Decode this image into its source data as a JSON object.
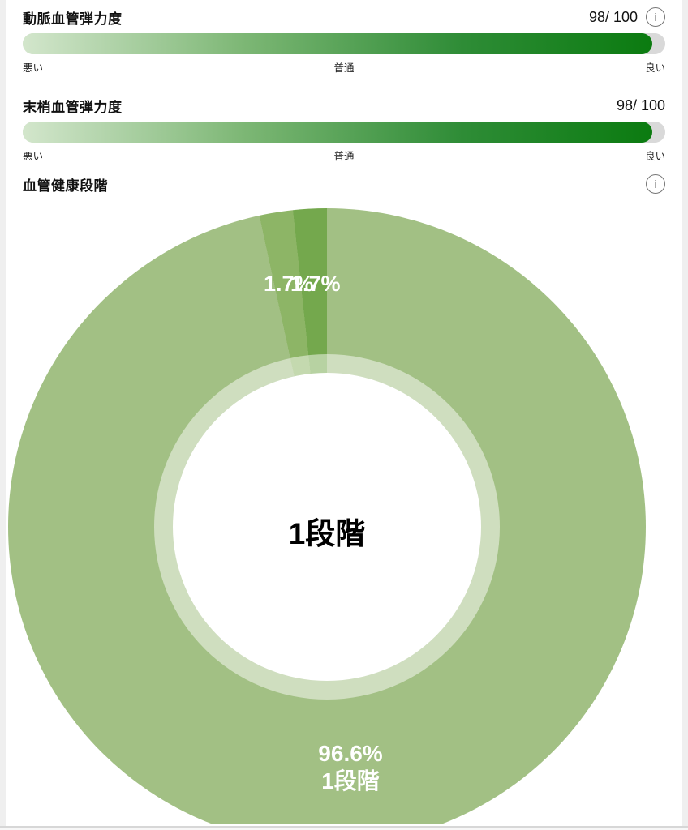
{
  "icons": {
    "info_glyph": "i"
  },
  "theme": {
    "bar_track_color": "#d9d9d9",
    "bar_gradient": [
      "#d3e6cc",
      "#7db775",
      "#2e8c36",
      "#0b7b10"
    ],
    "donut_inner_ring_lighten": 0.48
  },
  "metrics": [
    {
      "title": "動脈血管弾力度",
      "score": "98/ 100",
      "percent": 98,
      "has_info": true,
      "scale_labels": [
        "悪い",
        "普通",
        "良い"
      ]
    },
    {
      "title": "末梢血管弾力度",
      "score": "98/ 100",
      "percent": 98,
      "has_info": false,
      "scale_labels": [
        "悪い",
        "普通",
        "良い"
      ]
    }
  ],
  "stage_section": {
    "title": "血管健康段階"
  },
  "chart_data": {
    "type": "pie",
    "donut": true,
    "title": "血管健康段階",
    "center_label": "1段階",
    "legend_position": "none",
    "slices": [
      {
        "value": 96.6,
        "display_pct": "96.6%",
        "display_name": "1段階",
        "color": "#a2c084"
      },
      {
        "value": 1.7,
        "display_pct": "1.7%",
        "color": "#8db566"
      },
      {
        "value": 1.7,
        "display_pct": "1.7%",
        "color": "#74a84d"
      }
    ]
  }
}
